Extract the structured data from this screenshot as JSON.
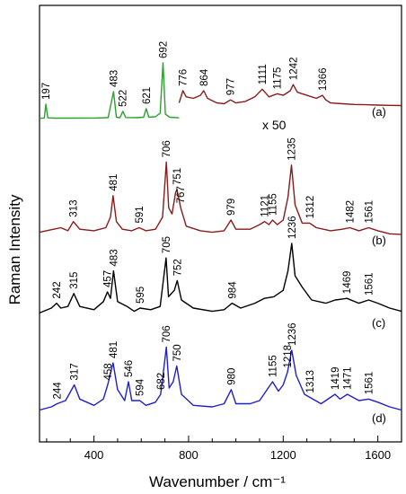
{
  "chart_data": {
    "type": "line",
    "xlabel": "Wavenumber / cm⁻¹",
    "ylabel": "Raman Intensity",
    "xlim": [
      170,
      1700
    ],
    "x_ticks": [
      400,
      800,
      1200,
      1600
    ],
    "y_ticks_shown": false,
    "grid": false,
    "annotations": [
      {
        "text": "x 50",
        "series": "(a)"
      }
    ],
    "series": [
      {
        "name": "(a)",
        "color": "#2ca02c",
        "points": [
          [
            170,
            0.3
          ],
          [
            190,
            0.6
          ],
          [
            197,
            16
          ],
          [
            205,
            0.8
          ],
          [
            230,
            0.5
          ],
          [
            300,
            0.5
          ],
          [
            400,
            0.6
          ],
          [
            460,
            1
          ],
          [
            483,
            30
          ],
          [
            495,
            1.5
          ],
          [
            510,
            1
          ],
          [
            522,
            8
          ],
          [
            535,
            1.2
          ],
          [
            580,
            1
          ],
          [
            610,
            1.5
          ],
          [
            621,
            11
          ],
          [
            632,
            1.5
          ],
          [
            660,
            2
          ],
          [
            680,
            6
          ],
          [
            692,
            62
          ],
          [
            702,
            5
          ],
          [
            720,
            1.5
          ],
          [
            760,
            0.8
          ]
        ],
        "peaks": [
          "197",
          "483",
          "522",
          "621",
          "692"
        ]
      },
      {
        "name": "(a) x 50",
        "color": "#8b1a1a",
        "points": [
          [
            760,
            2
          ],
          [
            776,
            10
          ],
          [
            790,
            6
          ],
          [
            820,
            5
          ],
          [
            850,
            7
          ],
          [
            864,
            10
          ],
          [
            880,
            5
          ],
          [
            920,
            2
          ],
          [
            950,
            1.5
          ],
          [
            977,
            4
          ],
          [
            1000,
            2
          ],
          [
            1040,
            3
          ],
          [
            1080,
            6
          ],
          [
            1111,
            11
          ],
          [
            1140,
            6
          ],
          [
            1175,
            8
          ],
          [
            1200,
            7
          ],
          [
            1230,
            10
          ],
          [
            1242,
            14
          ],
          [
            1260,
            9
          ],
          [
            1300,
            7
          ],
          [
            1340,
            5
          ],
          [
            1366,
            7
          ],
          [
            1380,
            4
          ],
          [
            1400,
            2
          ],
          [
            1450,
            1.5
          ],
          [
            1500,
            1
          ],
          [
            1550,
            0.8
          ],
          [
            1600,
            0.6
          ],
          [
            1650,
            0.4
          ],
          [
            1700,
            0.3
          ]
        ],
        "peaks": [
          "776",
          "864",
          "977",
          "1111",
          "1175",
          "1242",
          "1366"
        ]
      },
      {
        "name": "(b)",
        "color": "#8b1a1a",
        "points": [
          [
            170,
            2
          ],
          [
            230,
            4
          ],
          [
            260,
            5
          ],
          [
            290,
            3
          ],
          [
            313,
            9
          ],
          [
            340,
            4
          ],
          [
            400,
            3
          ],
          [
            450,
            5
          ],
          [
            470,
            12
          ],
          [
            481,
            26
          ],
          [
            495,
            9
          ],
          [
            520,
            4
          ],
          [
            560,
            3
          ],
          [
            591,
            5
          ],
          [
            620,
            3
          ],
          [
            660,
            4
          ],
          [
            690,
            12
          ],
          [
            706,
            48
          ],
          [
            716,
            18
          ],
          [
            730,
            14
          ],
          [
            745,
            28
          ],
          [
            751,
            30
          ],
          [
            767,
            18
          ],
          [
            790,
            6
          ],
          [
            850,
            3
          ],
          [
            900,
            2
          ],
          [
            950,
            3
          ],
          [
            979,
            10
          ],
          [
            1000,
            4
          ],
          [
            1060,
            4
          ],
          [
            1100,
            7
          ],
          [
            1121,
            9
          ],
          [
            1140,
            7
          ],
          [
            1155,
            10
          ],
          [
            1175,
            7
          ],
          [
            1200,
            10
          ],
          [
            1220,
            25
          ],
          [
            1235,
            46
          ],
          [
            1250,
            20
          ],
          [
            1280,
            8
          ],
          [
            1312,
            8
          ],
          [
            1340,
            5
          ],
          [
            1400,
            3
          ],
          [
            1450,
            4
          ],
          [
            1482,
            5
          ],
          [
            1520,
            3
          ],
          [
            1561,
            5
          ],
          [
            1600,
            3
          ],
          [
            1650,
            1
          ],
          [
            1700,
            0.5
          ]
        ],
        "peaks": [
          "313",
          "481",
          "591",
          "706",
          "751",
          "767",
          "979",
          "1121",
          "1155",
          "1235",
          "1312",
          "1482",
          "1561"
        ]
      },
      {
        "name": "(c)",
        "color": "#000000",
        "points": [
          [
            170,
            2
          ],
          [
            220,
            5
          ],
          [
            242,
            8
          ],
          [
            260,
            5
          ],
          [
            290,
            6
          ],
          [
            315,
            14
          ],
          [
            340,
            6
          ],
          [
            400,
            4
          ],
          [
            440,
            9
          ],
          [
            457,
            15
          ],
          [
            470,
            11
          ],
          [
            483,
            28
          ],
          [
            500,
            9
          ],
          [
            540,
            6
          ],
          [
            570,
            3
          ],
          [
            595,
            5
          ],
          [
            640,
            4
          ],
          [
            680,
            6
          ],
          [
            705,
            36
          ],
          [
            715,
            12
          ],
          [
            740,
            16
          ],
          [
            752,
            22
          ],
          [
            770,
            10
          ],
          [
            820,
            5
          ],
          [
            900,
            3
          ],
          [
            950,
            4
          ],
          [
            984,
            8
          ],
          [
            1020,
            5
          ],
          [
            1080,
            8
          ],
          [
            1120,
            11
          ],
          [
            1160,
            12
          ],
          [
            1200,
            16
          ],
          [
            1220,
            28
          ],
          [
            1236,
            45
          ],
          [
            1250,
            25
          ],
          [
            1280,
            18
          ],
          [
            1320,
            10
          ],
          [
            1380,
            8
          ],
          [
            1420,
            10
          ],
          [
            1469,
            11
          ],
          [
            1520,
            8
          ],
          [
            1561,
            10
          ],
          [
            1600,
            8
          ],
          [
            1650,
            5
          ],
          [
            1700,
            3
          ]
        ],
        "peaks": [
          "242",
          "315",
          "457",
          "483",
          "595",
          "705",
          "752",
          "984",
          "1236",
          "1469",
          "1561"
        ]
      },
      {
        "name": "(d)",
        "color": "#1f1fcc",
        "points": [
          [
            170,
            2
          ],
          [
            220,
            4
          ],
          [
            244,
            6
          ],
          [
            280,
            8
          ],
          [
            317,
            18
          ],
          [
            340,
            9
          ],
          [
            400,
            5
          ],
          [
            440,
            9
          ],
          [
            458,
            18
          ],
          [
            481,
            32
          ],
          [
            500,
            15
          ],
          [
            530,
            8
          ],
          [
            546,
            20
          ],
          [
            560,
            8
          ],
          [
            594,
            8
          ],
          [
            620,
            5
          ],
          [
            660,
            7
          ],
          [
            682,
            12
          ],
          [
            706,
            42
          ],
          [
            718,
            16
          ],
          [
            735,
            20
          ],
          [
            750,
            30
          ],
          [
            770,
            12
          ],
          [
            820,
            5
          ],
          [
            900,
            4
          ],
          [
            950,
            6
          ],
          [
            980,
            15
          ],
          [
            1000,
            6
          ],
          [
            1060,
            6
          ],
          [
            1100,
            8
          ],
          [
            1155,
            20
          ],
          [
            1180,
            14
          ],
          [
            1200,
            18
          ],
          [
            1218,
            26
          ],
          [
            1236,
            40
          ],
          [
            1255,
            24
          ],
          [
            1290,
            12
          ],
          [
            1313,
            10
          ],
          [
            1360,
            6
          ],
          [
            1419,
            12
          ],
          [
            1440,
            9
          ],
          [
            1471,
            12
          ],
          [
            1520,
            8
          ],
          [
            1561,
            9
          ],
          [
            1600,
            7
          ],
          [
            1650,
            4
          ],
          [
            1700,
            2
          ]
        ],
        "peaks": [
          "244",
          "317",
          "458",
          "481",
          "546",
          "594",
          "682",
          "706",
          "750",
          "980",
          "1155",
          "1218",
          "1236",
          "1313",
          "1419",
          "1471",
          "1561"
        ]
      }
    ]
  }
}
